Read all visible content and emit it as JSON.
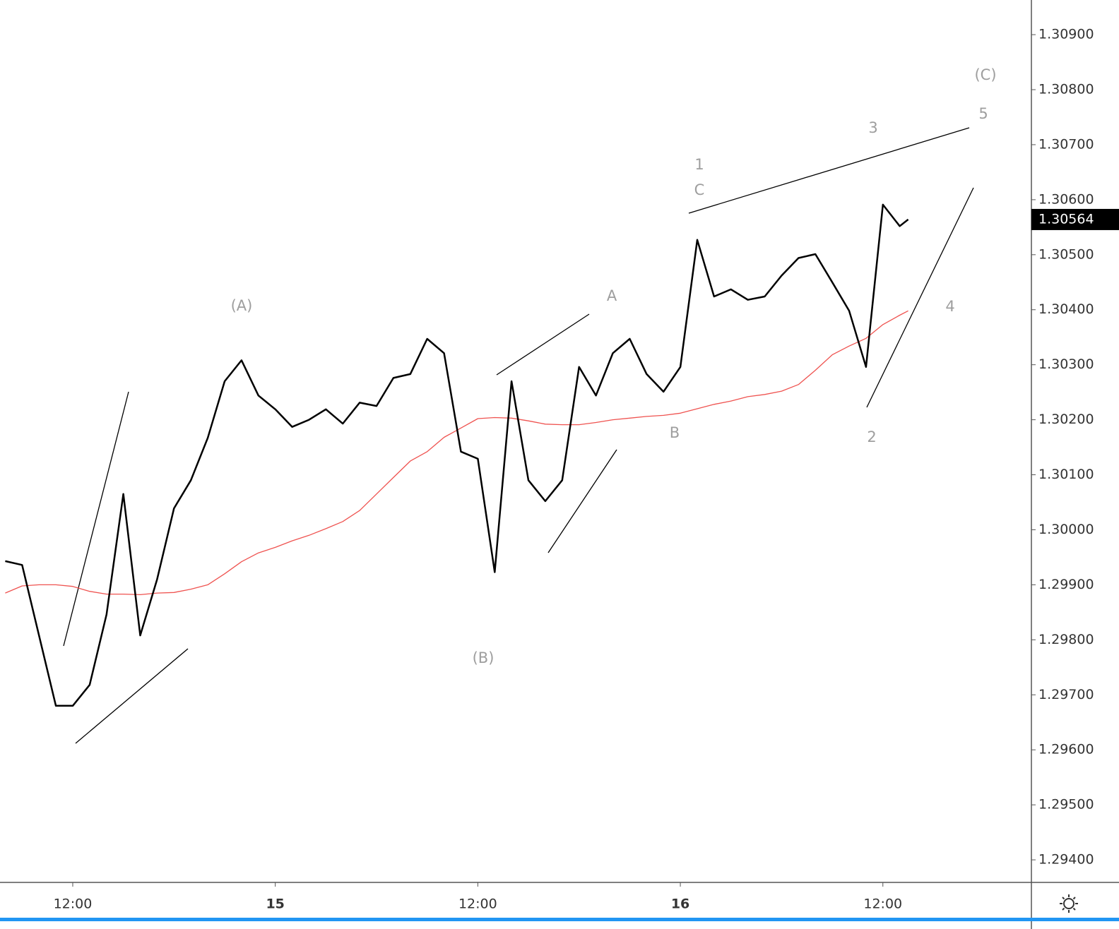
{
  "chart_data": {
    "type": "line",
    "x": [
      8,
      9,
      10,
      11,
      12,
      13,
      14,
      15,
      16,
      17,
      18,
      19,
      20,
      21,
      22,
      23,
      24,
      25,
      26,
      27,
      28,
      29,
      30,
      31,
      32,
      33,
      34,
      35,
      36,
      37,
      38,
      39,
      40,
      41,
      42,
      43,
      44,
      45,
      46,
      47,
      48,
      49,
      50,
      51,
      52,
      53,
      54,
      55,
      56,
      57,
      58,
      59,
      60,
      61,
      61.5
    ],
    "series": [
      {
        "color": "#000000",
        "values": [
          1.29943,
          1.29936,
          1.29808,
          1.2968,
          1.2968,
          1.29718,
          1.29846,
          1.30065,
          1.29808,
          1.2991,
          1.30039,
          1.3009,
          1.30167,
          1.3027,
          1.30308,
          1.30244,
          1.30219,
          1.30187,
          1.302,
          1.30219,
          1.30193,
          1.30231,
          1.30225,
          1.30276,
          1.30283,
          1.30347,
          1.30321,
          1.30142,
          1.30129,
          1.29923,
          1.3027,
          1.3009,
          1.30052,
          1.3009,
          1.30296,
          1.30244,
          1.30321,
          1.30347,
          1.30283,
          1.30251,
          1.30296,
          1.30527,
          1.30424,
          1.30437,
          1.30418,
          1.30424,
          1.30462,
          1.30494,
          1.30501,
          1.3045,
          1.30398,
          1.30296,
          1.30591,
          1.30552,
          1.30564
        ]
      },
      {
        "color": "#ef5350",
        "values": [
          1.29885,
          1.29898,
          1.299,
          1.299,
          1.29897,
          1.29888,
          1.29883,
          1.29883,
          1.29882,
          1.29885,
          1.29886,
          1.29892,
          1.299,
          1.2992,
          1.29942,
          1.29958,
          1.29968,
          1.2998,
          1.2999,
          1.30002,
          1.30015,
          1.30035,
          1.30065,
          1.30095,
          1.30125,
          1.30142,
          1.30168,
          1.30185,
          1.30202,
          1.30204,
          1.30203,
          1.30198,
          1.30192,
          1.30191,
          1.30191,
          1.30195,
          1.302,
          1.30203,
          1.30206,
          1.30208,
          1.30212,
          1.3022,
          1.30228,
          1.30234,
          1.30242,
          1.30246,
          1.30252,
          1.30264,
          1.3029,
          1.30318,
          1.30334,
          1.30348,
          1.30373,
          1.3039,
          1.30398
        ]
      }
    ],
    "last_price": 1.30564,
    "xlim": [
      7.69,
      68.8
    ],
    "xticks": [
      {
        "value": 12,
        "label": "12:00"
      },
      {
        "value": 24,
        "label": "15"
      },
      {
        "value": 36,
        "label": "12:00"
      },
      {
        "value": 48,
        "label": "16"
      },
      {
        "value": 60,
        "label": "12:00"
      }
    ],
    "ylim": [
      1.29359,
      1.30963
    ],
    "yticks": [
      {
        "value": 1.294,
        "label": "1.29400"
      },
      {
        "value": 1.295,
        "label": "1.29500"
      },
      {
        "value": 1.296,
        "label": "1.29600"
      },
      {
        "value": 1.297,
        "label": "1.29700"
      },
      {
        "value": 1.298,
        "label": "1.29800"
      },
      {
        "value": 1.299,
        "label": "1.29900"
      },
      {
        "value": 1.3,
        "label": "1.30000"
      },
      {
        "value": 1.301,
        "label": "1.30100"
      },
      {
        "value": 1.302,
        "label": "1.30200"
      },
      {
        "value": 1.303,
        "label": "1.30300"
      },
      {
        "value": 1.304,
        "label": "1.30400"
      },
      {
        "value": 1.305,
        "label": "1.30500"
      },
      {
        "value": 1.306,
        "label": "1.30600"
      },
      {
        "value": 1.307,
        "label": "1.30700"
      },
      {
        "value": 1.308,
        "label": "1.30800"
      },
      {
        "value": 1.309,
        "label": "1.30900"
      }
    ],
    "annotations": [
      "(A)",
      "(B)",
      "(C)",
      "A",
      "B",
      "C",
      "1",
      "2",
      "3",
      "4",
      "5"
    ]
  }
}
